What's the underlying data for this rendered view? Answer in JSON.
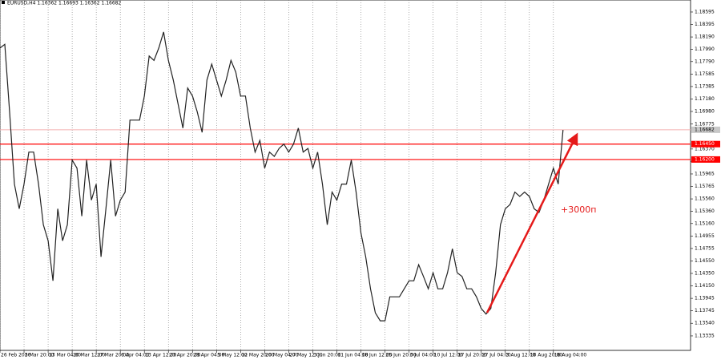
{
  "chart_data": {
    "type": "line",
    "title": "EURUSD,H4  1.16362 1.16693 1.16362 1.16682",
    "annotations": [
      "+3000п"
    ],
    "x": [
      0,
      1,
      2,
      3,
      4,
      5,
      6,
      7,
      8,
      9,
      10,
      11,
      12,
      13,
      14,
      15,
      16,
      17,
      18,
      19,
      20,
      21,
      22,
      23,
      24,
      25,
      26,
      27,
      28,
      29,
      30,
      31,
      32,
      33,
      34,
      35,
      36,
      37,
      38,
      39,
      40,
      41,
      42,
      43,
      44,
      45,
      46,
      47,
      48,
      49,
      50,
      51,
      52,
      53,
      54,
      55,
      56,
      57,
      58,
      59,
      60,
      61,
      62,
      63,
      64,
      65,
      66,
      67,
      68,
      69,
      70,
      71,
      72,
      73,
      74,
      75,
      76,
      77,
      78,
      79,
      80,
      81,
      82,
      83,
      84,
      85,
      86,
      87,
      88,
      89,
      90,
      91,
      92,
      93,
      94,
      95,
      96,
      97,
      98,
      99,
      100,
      101,
      102,
      103,
      104,
      105,
      106,
      107,
      108,
      109,
      110,
      111,
      112,
      113,
      114,
      115,
      116,
      117
    ],
    "series": [
      {
        "name": "EURUSD,H4",
        "color": "#222222",
        "values": [
          1.1801,
          1.1807,
          1.1697,
          1.158,
          1.154,
          1.158,
          1.1632,
          1.1632,
          1.158,
          1.1514,
          1.1488,
          1.1423,
          1.154,
          1.1488,
          1.1514,
          1.1619,
          1.1606,
          1.1528,
          1.1619,
          1.1554,
          1.158,
          1.1462,
          1.154,
          1.1619,
          1.1528,
          1.1554,
          1.1567,
          1.1684,
          1.1684,
          1.1684,
          1.1723,
          1.1788,
          1.1781,
          1.1801,
          1.1827,
          1.1781,
          1.1749,
          1.171,
          1.1671,
          1.1736,
          1.1723,
          1.1697,
          1.1664,
          1.1749,
          1.1775,
          1.1749,
          1.1723,
          1.1749,
          1.1781,
          1.1762,
          1.1723,
          1.1723,
          1.1671,
          1.1632,
          1.1651,
          1.1606,
          1.1632,
          1.1625,
          1.1638,
          1.1645,
          1.1632,
          1.1645,
          1.1671,
          1.1632,
          1.1638,
          1.1606,
          1.1632,
          1.158,
          1.1514,
          1.1567,
          1.1554,
          1.158,
          1.158,
          1.1619,
          1.1567,
          1.1501,
          1.1462,
          1.141,
          1.1371,
          1.1358,
          1.1358,
          1.1397,
          1.1397,
          1.1397,
          1.141,
          1.1423,
          1.1423,
          1.1449,
          1.143,
          1.141,
          1.1436,
          1.141,
          1.141,
          1.1436,
          1.1475,
          1.1436,
          1.143,
          1.141,
          1.141,
          1.1397,
          1.1378,
          1.1369,
          1.1378,
          1.1436,
          1.1514,
          1.154,
          1.1547,
          1.1567,
          1.156,
          1.1567,
          1.156,
          1.154,
          1.1534,
          1.1554,
          1.158,
          1.1606,
          1.158,
          1.1668
        ]
      }
    ],
    "xlim": [
      0,
      143.5
    ],
    "xticks": [
      {
        "value": 0,
        "label": "26 Feb 2026"
      },
      {
        "value": 5,
        "label": "5 Mar 20:00"
      },
      {
        "value": 10,
        "label": "13 Mar 04:00"
      },
      {
        "value": 15,
        "label": "20 Mar 12:00"
      },
      {
        "value": 20,
        "label": "27 Mar 20:00"
      },
      {
        "value": 25,
        "label": "6 Apr 04:00"
      },
      {
        "value": 30,
        "label": "13 Apr 12:00"
      },
      {
        "value": 35,
        "label": "20 Apr 20:00"
      },
      {
        "value": 40,
        "label": "28 Apr 04:00"
      },
      {
        "value": 45,
        "label": "5 May 12:00"
      },
      {
        "value": 50,
        "label": "12 May 20:00"
      },
      {
        "value": 55,
        "label": "20 May 04:00"
      },
      {
        "value": 60,
        "label": "27 May 12:00"
      },
      {
        "value": 65,
        "label": "3 Jun 20:00"
      },
      {
        "value": 70,
        "label": "11 Jun 04:00"
      },
      {
        "value": 75,
        "label": "18 Jun 12:00"
      },
      {
        "value": 80,
        "label": "25 Jun 20:00"
      },
      {
        "value": 85,
        "label": "3 Jul 04:00"
      },
      {
        "value": 90,
        "label": "10 Jul 12:00"
      },
      {
        "value": 95,
        "label": "17 Jul 20:00"
      },
      {
        "value": 100,
        "label": "27 Jul 04:00"
      },
      {
        "value": 105,
        "label": "3 Aug 12:00"
      },
      {
        "value": 110,
        "label": "10 Aug 20:00"
      },
      {
        "value": 115,
        "label": "18 Aug 04:00"
      }
    ],
    "ylim": [
      1.131,
      1.1879
    ],
    "yticks": [
      1.18595,
      1.18395,
      {
        "value": 1.1819,
        "label": "1.18190"
      },
      {
        "value": 1.1799,
        "label": "1.17990"
      },
      {
        "value": 1.1779,
        "label": "1.17790"
      },
      1.17585,
      1.17385,
      {
        "value": 1.1718,
        "label": "1.17180"
      },
      {
        "value": 1.1698,
        "label": "1.16980"
      },
      1.16775,
      {
        "value": 1.1637,
        "label": "1.16370"
      },
      {
        "value": 1.1617,
        "label": "1.16170"
      },
      1.15965,
      1.15765,
      {
        "value": 1.1556,
        "label": "1.15560"
      },
      {
        "value": 1.1536,
        "label": "1.15360"
      },
      {
        "value": 1.1516,
        "label": "1.15160"
      },
      1.14955,
      1.14755,
      {
        "value": 1.1455,
        "label": "1.14550"
      },
      {
        "value": 1.1435,
        "label": "1.14350"
      },
      {
        "value": 1.1415,
        "label": "1.14150"
      },
      1.13945,
      1.13745,
      {
        "value": 1.1354,
        "label": "1.13540"
      },
      1.13335
    ],
    "hlines": [
      {
        "value": 1.16682,
        "color": "#f4b0b0",
        "label_bg": "#c8c8c8"
      },
      {
        "value": 1.1645,
        "label": "1.16450",
        "color": "#ff0000",
        "label_bg": "#ff0000"
      },
      {
        "value": 1.162,
        "label": "1.16200",
        "color": "#ff0000",
        "label_bg": "#ff0000"
      }
    ],
    "grid": true
  }
}
